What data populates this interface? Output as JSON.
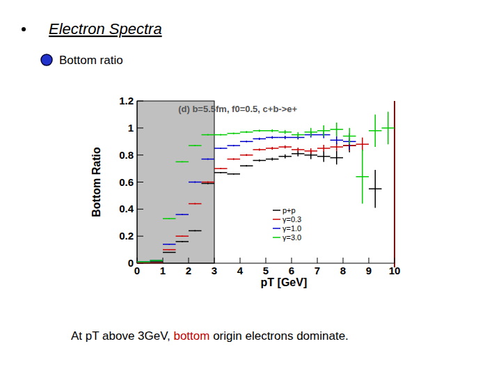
{
  "slide": {
    "heading": "Electron Spectra",
    "bullet": "Bottom ratio",
    "caption_before": "At pT above 3GeV, ",
    "caption_highlight": "bottom",
    "caption_after": " origin electrons dominate."
  },
  "chart_data": {
    "type": "scatter",
    "title": "(d) b=5.5fm, f0=0.5, c+b->e+",
    "x_label": "pT [GeV]",
    "y_label": "Bottom Ratio",
    "x": [
      0.25,
      0.75,
      1.25,
      1.75,
      2.25,
      2.75,
      3.25,
      3.75,
      4.25,
      4.75,
      5.25,
      5.75,
      6.25,
      6.75,
      7.25,
      7.75,
      8.25,
      8.75,
      9.25,
      9.75
    ],
    "x_error": 0.25,
    "shaded_xrange": [
      0,
      3
    ],
    "xlim": [
      0,
      10
    ],
    "ylim": [
      0,
      1.2
    ],
    "xticks": [
      0,
      1,
      2,
      3,
      4,
      5,
      6,
      7,
      8,
      9,
      10
    ],
    "yticks": [
      0,
      0.2,
      0.4,
      0.6,
      0.8,
      1,
      1.2
    ],
    "grid": false,
    "legend": "lower right",
    "series": [
      {
        "name": "p+p",
        "color": "#000000",
        "values": [
          0,
          0.01,
          0.08,
          0.16,
          0.24,
          0.59,
          0.67,
          0.66,
          0.72,
          0.76,
          0.77,
          0.79,
          0.81,
          0.8,
          0.79,
          0.78,
          0.87,
          null,
          0.55,
          null
        ],
        "errors": [
          0,
          0,
          0.003,
          0.005,
          0.005,
          0.005,
          0.005,
          0.005,
          0.006,
          0.008,
          0.01,
          0.015,
          0.02,
          0.03,
          0.04,
          0.05,
          0.05,
          null,
          0.14,
          null
        ]
      },
      {
        "name": "γ=0.3",
        "color": "#cc0000",
        "values": [
          0,
          0,
          0.1,
          0.2,
          0.44,
          0.6,
          0.7,
          0.77,
          0.8,
          0.84,
          0.85,
          0.86,
          0.84,
          0.83,
          0.85,
          0.86,
          0.87,
          0.88,
          null,
          null
        ],
        "errors": [
          0,
          0,
          0.003,
          0.004,
          0.005,
          0.005,
          0.005,
          0.006,
          0.007,
          0.008,
          0.01,
          0.012,
          0.015,
          0.02,
          0.025,
          0.03,
          0.04,
          0.05,
          null,
          null
        ]
      },
      {
        "name": "γ=1.0",
        "color": "#0000cc",
        "values": [
          0.01,
          0.02,
          0.14,
          0.36,
          0.6,
          0.77,
          0.85,
          0.87,
          0.9,
          0.92,
          0.93,
          0.93,
          0.93,
          0.95,
          0.95,
          0.91,
          0.9,
          null,
          null,
          null
        ],
        "errors": [
          0,
          0,
          0.003,
          0.004,
          0.005,
          0.005,
          0.005,
          0.006,
          0.007,
          0.008,
          0.01,
          0.012,
          0.015,
          0.02,
          0.025,
          0.03,
          0.06,
          null,
          null,
          null
        ]
      },
      {
        "name": "γ=3.0",
        "color": "#00cc00",
        "values": [
          0.01,
          0.02,
          0.33,
          0.75,
          0.87,
          0.95,
          0.95,
          0.96,
          0.97,
          0.98,
          0.98,
          0.97,
          0.95,
          0.97,
          0.98,
          0.99,
          0.94,
          0.64,
          0.98,
          1.0
        ],
        "errors": [
          0,
          0,
          0.003,
          0.004,
          0.005,
          0.005,
          0.005,
          0.006,
          0.007,
          0.008,
          0.01,
          0.015,
          0.02,
          0.03,
          0.04,
          0.05,
          0.06,
          0.2,
          0.12,
          0.12
        ]
      }
    ]
  }
}
